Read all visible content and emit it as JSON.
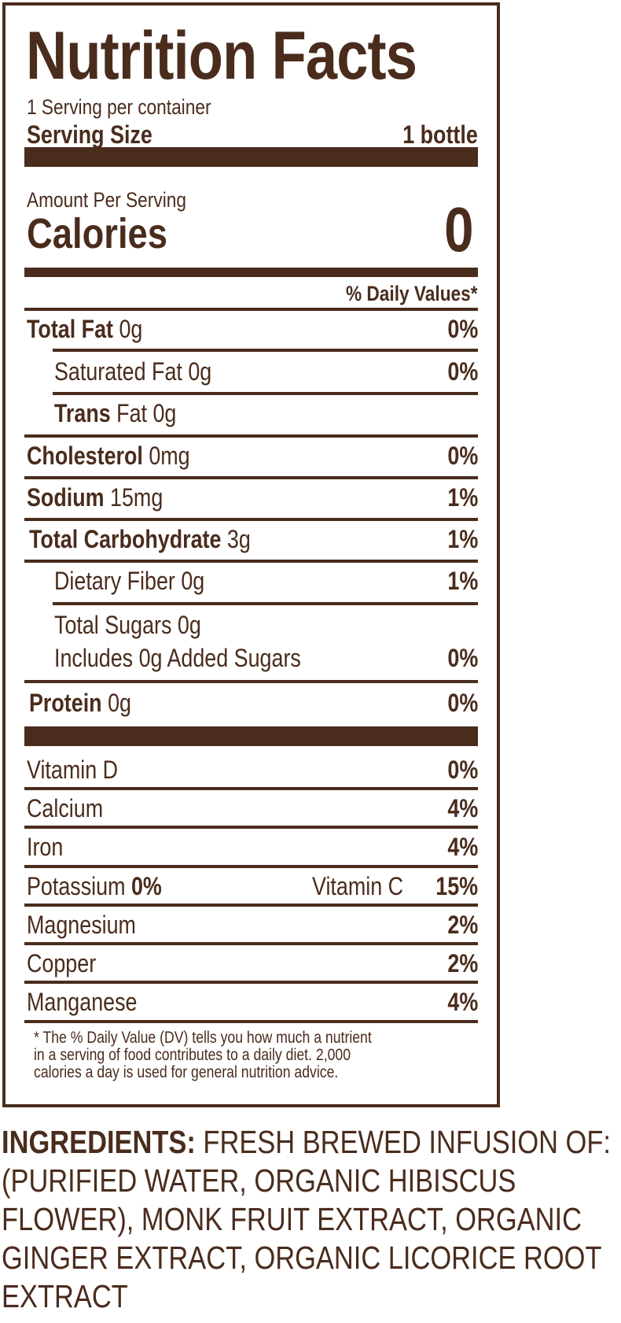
{
  "colors": {
    "ink": "#4a2c1d",
    "background": "#ffffff"
  },
  "label": {
    "title": "Nutrition Facts",
    "servings_per_container": "1 Serving per container",
    "serving_size_label": "Serving Size",
    "serving_size_value": "1 bottle",
    "amount_per_serving": "Amount Per Serving",
    "calories_label": "Calories",
    "calories_value": "0",
    "daily_values_header": "% Daily Values*",
    "total_fat": {
      "name": "Total Fat",
      "amount": " 0g",
      "dv": "0%"
    },
    "saturated_fat": {
      "name": "Saturated Fat 0g",
      "dv": "0%"
    },
    "trans_fat": {
      "name": "Trans",
      "amount": " Fat 0g"
    },
    "cholesterol": {
      "name": "Cholesterol",
      "amount": " 0mg",
      "dv": "0%"
    },
    "sodium": {
      "name": "Sodium",
      "amount": " 15mg",
      "dv": "1%"
    },
    "total_carbohydrate": {
      "name": "Total Carbohydrate",
      "amount": " 3g",
      "dv": "1%"
    },
    "dietary_fiber": {
      "name": "Dietary Fiber  0g",
      "dv": "1%"
    },
    "total_sugars": {
      "name": "Total Sugars  0g"
    },
    "added_sugars": {
      "name": "Includes 0g Added Sugars",
      "dv": "0%"
    },
    "protein": {
      "name": "Protein",
      "amount": " 0g",
      "dv": "0%"
    },
    "vitamin_d": {
      "name": "Vitamin D",
      "dv": "0%"
    },
    "calcium": {
      "name": "Calcium",
      "dv": "4%"
    },
    "iron": {
      "name": "Iron",
      "dv": "4%"
    },
    "potassium": {
      "name": "Potassium",
      "dv": "0%"
    },
    "vitamin_c": {
      "name": "Vitamin C",
      "dv": "15%"
    },
    "magnesium": {
      "name": "Magnesium",
      "dv": "2%"
    },
    "copper": {
      "name": "Copper",
      "dv": "2%"
    },
    "manganese": {
      "name": "Manganese",
      "dv": "4%"
    },
    "footnote": [
      "* The % Daily Value (DV) tells you how much a nutrient",
      "in a serving of food contributes to a daily diet. 2,000",
      "calories a day is used for general nutrition advice."
    ]
  },
  "ingredients": {
    "heading": "INGREDIENTS:",
    "lines": [
      " FRESH BREWED INFUSION OF:",
      "(PURIFIED WATER, ORGANIC HIBISCUS",
      "FLOWER), MONK FRUIT EXTRACT, ORGANIC",
      "GINGER EXTRACT, ORGANIC LICORICE ROOT",
      "EXTRACT"
    ]
  }
}
